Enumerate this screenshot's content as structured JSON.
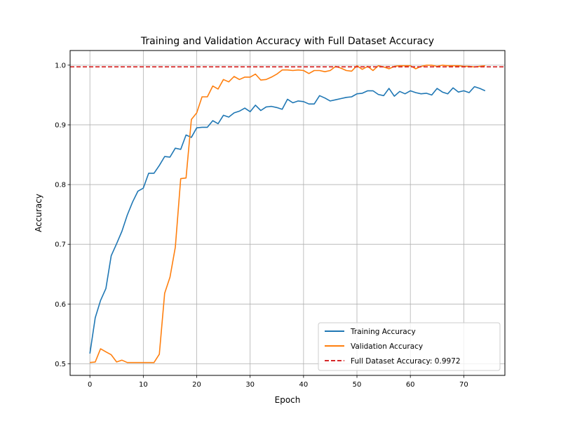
{
  "chart_data": {
    "type": "line",
    "title": "Training and Validation Accuracy with Full Dataset Accuracy",
    "xlabel": "Epoch",
    "ylabel": "Accuracy",
    "xlim": [
      -3.7,
      77.7
    ],
    "ylim": [
      0.4805,
      1.0245
    ],
    "xticks": [
      0,
      10,
      20,
      30,
      40,
      50,
      60,
      70
    ],
    "yticks": [
      0.5,
      0.6,
      0.7,
      0.8,
      0.9,
      1.0
    ],
    "xtick_labels": [
      "0",
      "10",
      "20",
      "30",
      "40",
      "50",
      "60",
      "70"
    ],
    "ytick_labels": [
      "0.5",
      "0.6",
      "0.7",
      "0.8",
      "0.9",
      "1.0"
    ],
    "grid": true,
    "legend_position": "lower-right",
    "series": [
      {
        "name": "Training Accuracy",
        "color": "#1f77b4",
        "x": [
          0,
          1,
          2,
          3,
          4,
          5,
          6,
          7,
          8,
          9,
          10,
          11,
          12,
          13,
          14,
          15,
          16,
          17,
          18,
          19,
          20,
          21,
          22,
          23,
          24,
          25,
          26,
          27,
          28,
          29,
          30,
          31,
          32,
          33,
          34,
          35,
          36,
          37,
          38,
          39,
          40,
          41,
          42,
          43,
          44,
          45,
          46,
          47,
          48,
          49,
          50,
          51,
          52,
          53,
          54,
          55,
          56,
          57,
          58,
          59,
          60,
          61,
          62,
          63,
          64,
          65,
          66,
          67,
          68,
          69,
          70,
          71,
          72,
          73,
          74
        ],
        "values": [
          0.517,
          0.577,
          0.606,
          0.626,
          0.681,
          0.701,
          0.722,
          0.749,
          0.771,
          0.789,
          0.794,
          0.819,
          0.819,
          0.832,
          0.847,
          0.846,
          0.861,
          0.859,
          0.883,
          0.879,
          0.895,
          0.896,
          0.896,
          0.907,
          0.902,
          0.916,
          0.913,
          0.92,
          0.923,
          0.928,
          0.922,
          0.933,
          0.924,
          0.93,
          0.931,
          0.929,
          0.926,
          0.943,
          0.937,
          0.94,
          0.939,
          0.935,
          0.935,
          0.949,
          0.945,
          0.94,
          0.942,
          0.944,
          0.946,
          0.947,
          0.952,
          0.953,
          0.957,
          0.957,
          0.951,
          0.949,
          0.961,
          0.948,
          0.956,
          0.952,
          0.957,
          0.954,
          0.952,
          0.953,
          0.95,
          0.961,
          0.955,
          0.952,
          0.962,
          0.955,
          0.957,
          0.954,
          0.964,
          0.961,
          0.957
        ]
      },
      {
        "name": "Validation Accuracy",
        "color": "#ff7f0e",
        "x": [
          0,
          1,
          2,
          3,
          4,
          5,
          6,
          7,
          8,
          9,
          10,
          11,
          12,
          13,
          14,
          15,
          16,
          17,
          18,
          19,
          20,
          21,
          22,
          23,
          24,
          25,
          26,
          27,
          28,
          29,
          30,
          31,
          32,
          33,
          34,
          35,
          36,
          37,
          38,
          39,
          40,
          41,
          42,
          43,
          44,
          45,
          46,
          47,
          48,
          49,
          50,
          51,
          52,
          53,
          54,
          55,
          56,
          57,
          58,
          59,
          60,
          61,
          62,
          63,
          64,
          65,
          66,
          67,
          68,
          69,
          70,
          71,
          72,
          73,
          74
        ],
        "values": [
          0.502,
          0.503,
          0.525,
          0.52,
          0.515,
          0.503,
          0.506,
          0.502,
          0.502,
          0.502,
          0.502,
          0.502,
          0.502,
          0.516,
          0.618,
          0.645,
          0.695,
          0.81,
          0.811,
          0.909,
          0.92,
          0.947,
          0.947,
          0.965,
          0.96,
          0.976,
          0.972,
          0.981,
          0.976,
          0.98,
          0.98,
          0.985,
          0.975,
          0.976,
          0.98,
          0.985,
          0.992,
          0.992,
          0.991,
          0.992,
          0.991,
          0.986,
          0.991,
          0.991,
          0.989,
          0.991,
          0.998,
          0.995,
          0.991,
          0.99,
          0.999,
          0.993,
          0.998,
          0.991,
          0.999,
          0.997,
          0.994,
          0.998,
          0.999,
          0.999,
          0.999,
          0.994,
          0.998,
          1.0,
          1.0,
          0.998,
          1.0,
          0.999,
          0.999,
          0.999,
          0.998,
          0.998,
          0.997,
          0.998,
          0.999
        ]
      },
      {
        "name": "Full Dataset Accuracy: 0.9972",
        "color": "#d62728",
        "style": "dashed",
        "horizontal_line": 0.9972
      }
    ]
  }
}
